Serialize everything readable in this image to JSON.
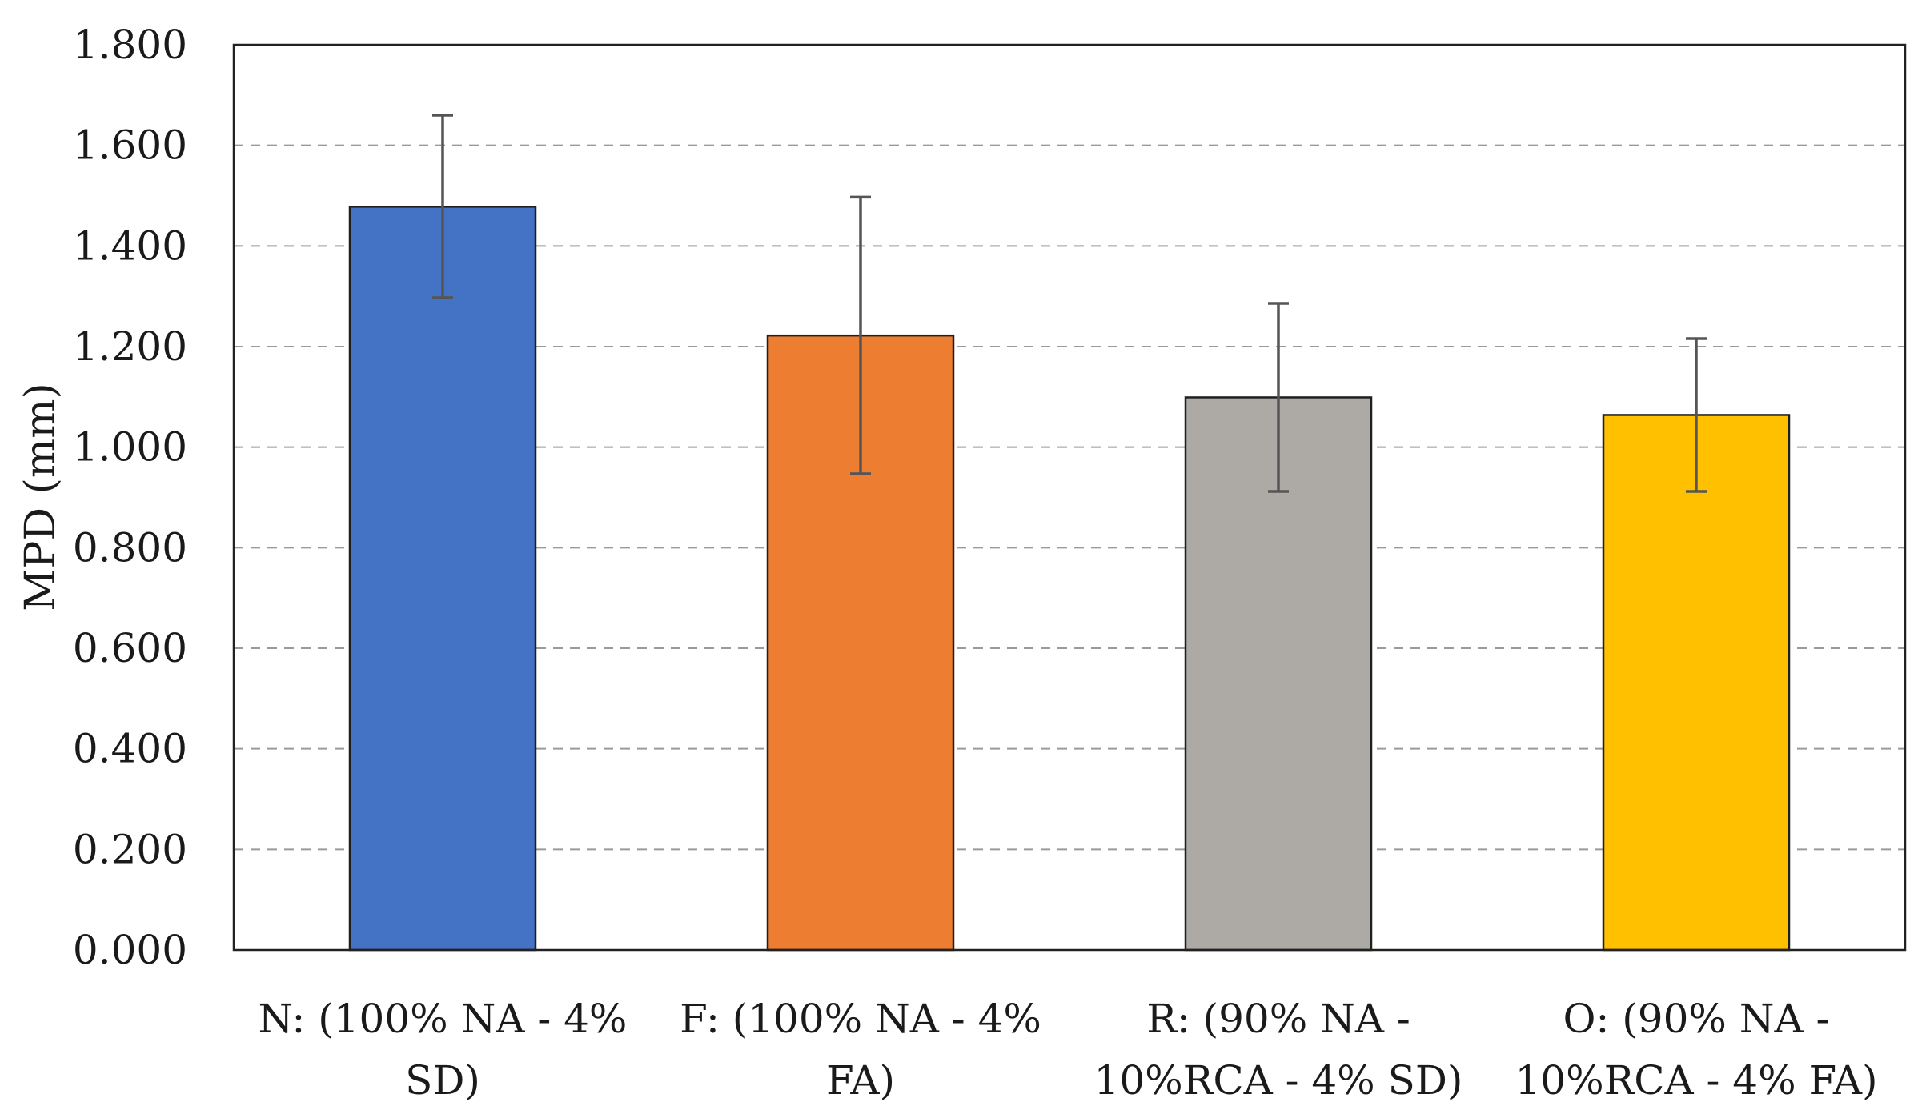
{
  "chart_data": {
    "type": "bar",
    "title": "",
    "xlabel": "",
    "ylabel": "MPD (mm)",
    "ylim": [
      0,
      1.8
    ],
    "yticks": [
      "0.000",
      "0.200",
      "0.400",
      "0.600",
      "0.800",
      "1.000",
      "1.200",
      "1.400",
      "1.600",
      "1.800"
    ],
    "grid": true,
    "legend": "none",
    "categories": [
      {
        "line1": "N: (100% NA - 4%",
        "line2": "SD)"
      },
      {
        "line1": "F: (100% NA - 4%",
        "line2": "FA)"
      },
      {
        "line1": "R: (90% NA -",
        "line2": "10%RCA - 4% SD)"
      },
      {
        "line1": "O: (90% NA -",
        "line2": "10%RCA - 4% FA)"
      }
    ],
    "values": [
      1.478,
      1.222,
      1.099,
      1.064
    ],
    "error_low": [
      1.297,
      0.947,
      0.912,
      0.912
    ],
    "error_high": [
      1.66,
      1.497,
      1.286,
      1.216
    ],
    "colors": [
      "#4472C4",
      "#ED7D31",
      "#ADAAA6",
      "#FFC000"
    ]
  }
}
